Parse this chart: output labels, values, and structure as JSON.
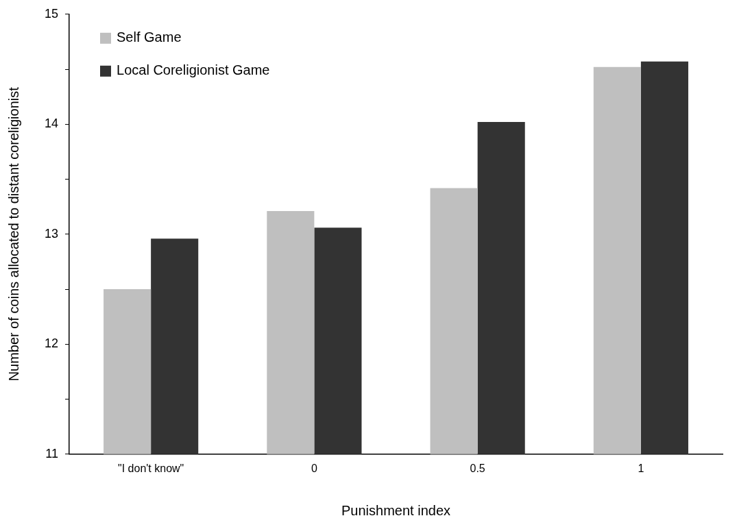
{
  "chart_data": {
    "type": "bar",
    "xlabel": "Punishment index",
    "ylabel": "Number of coins allocated to distant coreligionist",
    "categories": [
      "\"I don't know\"",
      "0",
      "0.5",
      "1"
    ],
    "series": [
      {
        "name": "Self Game",
        "color": "#bfbfbf",
        "values": [
          12.5,
          13.21,
          13.42,
          14.52
        ]
      },
      {
        "name": "Local Coreligionist Game",
        "color": "#333333",
        "values": [
          12.96,
          13.06,
          14.02,
          14.57
        ]
      }
    ],
    "ylim": [
      11,
      15
    ],
    "yticks": [
      11,
      {
        "value": 11.5,
        "label": null
      },
      12,
      {
        "value": 12.5,
        "label": null
      },
      13,
      {
        "value": 13.5,
        "label": null
      },
      14,
      {
        "value": 14.5,
        "label": null
      },
      15
    ],
    "grid": false,
    "legend": "top left"
  }
}
